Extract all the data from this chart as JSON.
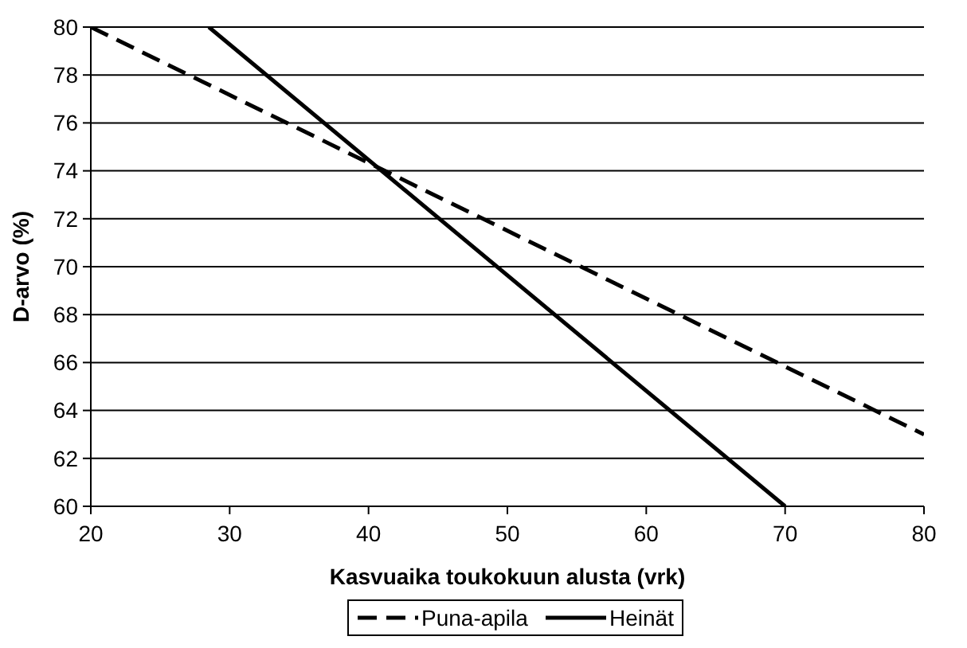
{
  "chart_data": {
    "type": "line",
    "xlabel": "Kasvuaika toukokuun alusta (vrk)",
    "ylabel": "D-arvo (%)",
    "xlim": [
      20,
      80
    ],
    "ylim": [
      60,
      80
    ],
    "xticks": [
      20,
      30,
      40,
      50,
      60,
      70,
      80
    ],
    "yticks": [
      60,
      62,
      64,
      66,
      68,
      70,
      72,
      74,
      76,
      78,
      80
    ],
    "grid": "y",
    "legend": "bottom",
    "series": [
      {
        "name": "Puna-apila",
        "color": "#000000",
        "line_style": "dashed",
        "x": [
          20,
          80
        ],
        "values": [
          80,
          63
        ]
      },
      {
        "name": "Heinät",
        "color": "#000000",
        "line_style": "solid",
        "x": [
          28.5,
          70
        ],
        "values": [
          80,
          60
        ]
      }
    ]
  }
}
